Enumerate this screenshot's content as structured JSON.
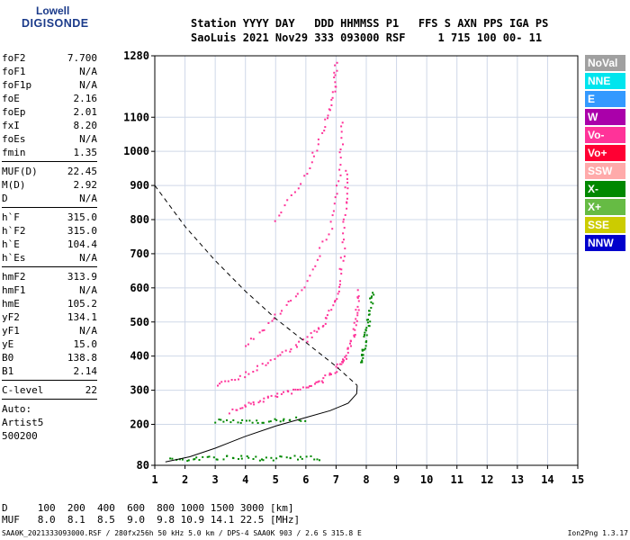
{
  "logo": {
    "line1": "Lowell",
    "line2": "DIGISONDE"
  },
  "header": {
    "line1": "Station YYYY DAY   DDD HHMMSS P1   FFS S AXN PPS IGA PS",
    "line2": "SaoLuis 2021 Nov29 333 093000 RSF     1 715 100 00- 11"
  },
  "params": {
    "group1": [
      {
        "k": "foF2",
        "v": "7.700"
      },
      {
        "k": "foF1",
        "v": "N/A"
      },
      {
        "k": "foF1p",
        "v": "N/A"
      },
      {
        "k": "foE",
        "v": "2.16"
      },
      {
        "k": "foEp",
        "v": "2.01"
      },
      {
        "k": "fxI",
        "v": "8.20"
      },
      {
        "k": "foEs",
        "v": "N/A"
      },
      {
        "k": "fmin",
        "v": "1.35"
      }
    ],
    "group2": [
      {
        "k": "MUF(D)",
        "v": "22.45"
      },
      {
        "k": "M(D)",
        "v": "2.92"
      },
      {
        "k": "D",
        "v": "N/A"
      }
    ],
    "group3": [
      {
        "k": "h`F",
        "v": "315.0"
      },
      {
        "k": "h`F2",
        "v": "315.0"
      },
      {
        "k": "h`E",
        "v": "104.4"
      },
      {
        "k": "h`Es",
        "v": "N/A"
      }
    ],
    "group4": [
      {
        "k": "hmF2",
        "v": "313.9"
      },
      {
        "k": "hmF1",
        "v": "N/A"
      },
      {
        "k": "hmE",
        "v": "105.2"
      },
      {
        "k": "yF2",
        "v": "134.1"
      },
      {
        "k": "yF1",
        "v": "N/A"
      },
      {
        "k": "yE",
        "v": "15.0"
      },
      {
        "k": "B0",
        "v": "138.8"
      },
      {
        "k": "B1",
        "v": "2.14"
      }
    ],
    "group5": [
      {
        "k": "C-level",
        "v": "22"
      }
    ],
    "notes": [
      "Auto:",
      "Artist5",
      "500200"
    ]
  },
  "legend": [
    {
      "label": "NoVal",
      "color": "#a0a0a0"
    },
    {
      "label": "NNE",
      "color": "#00e5ee"
    },
    {
      "label": "E",
      "color": "#3399ff"
    },
    {
      "label": "W",
      "color": "#aa00aa"
    },
    {
      "label": "Vo-",
      "color": "#ff3399"
    },
    {
      "label": "Vo+",
      "color": "#ff0033"
    },
    {
      "label": "SSW",
      "color": "#ffaaaa"
    },
    {
      "label": "X-",
      "color": "#008800"
    },
    {
      "label": "X+",
      "color": "#66bb44"
    },
    {
      "label": "SSE",
      "color": "#cccc00"
    },
    {
      "label": "NNW",
      "color": "#0000cc"
    }
  ],
  "bottom": {
    "line1": "D     100  200  400  600  800 1000 1500 3000 [km]",
    "line2": "MUF   8.0  8.1  8.5  9.0  9.8 10.9 14.1 22.5 [MHz]"
  },
  "footer": {
    "left": "SAA0K_2021333093000.RSF / 280fx256h 50 kHz 5.0 km / DPS-4 SAA0K 903 / 2.6 S 315.8 E",
    "right": "Ion2Png 1.3.17"
  },
  "chart_data": {
    "type": "scatter",
    "xlabel": "",
    "ylabel": "",
    "xlim": [
      1,
      15
    ],
    "ylim": [
      80,
      1280
    ],
    "x_ticks": [
      1,
      2,
      3,
      4,
      5,
      6,
      7,
      8,
      9,
      10,
      11,
      12,
      13,
      14,
      15
    ],
    "y_ticks": [
      80,
      200,
      300,
      400,
      500,
      600,
      700,
      800,
      900,
      1000,
      1100,
      1280
    ],
    "grid": true,
    "traces": [
      {
        "name": "F2 O-trace",
        "color": "#ff3399",
        "points": [
          [
            3.5,
            240
          ],
          [
            4.2,
            265
          ],
          [
            5.0,
            288
          ],
          [
            5.8,
            305
          ],
          [
            6.5,
            330
          ],
          [
            7.0,
            365
          ],
          [
            7.3,
            400
          ],
          [
            7.5,
            450
          ],
          [
            7.65,
            520
          ],
          [
            7.7,
            600
          ]
        ]
      },
      {
        "name": "F2 X-trace",
        "color": "#008800",
        "points": [
          [
            7.8,
            380
          ],
          [
            7.9,
            430
          ],
          [
            8.0,
            480
          ],
          [
            8.1,
            530
          ],
          [
            8.2,
            600
          ]
        ]
      },
      {
        "name": "2nd hop",
        "color": "#ff3399",
        "points": [
          [
            3.0,
            320
          ],
          [
            4.0,
            350
          ],
          [
            5.0,
            400
          ],
          [
            6.0,
            450
          ],
          [
            6.6,
            500
          ],
          [
            7.0,
            580
          ],
          [
            7.2,
            700
          ],
          [
            7.3,
            850
          ],
          [
            7.35,
            950
          ]
        ]
      },
      {
        "name": "3rd hop",
        "color": "#ff3399",
        "points": [
          [
            4.0,
            430
          ],
          [
            5.0,
            520
          ],
          [
            6.0,
            620
          ],
          [
            6.8,
            780
          ],
          [
            7.1,
            950
          ],
          [
            7.2,
            1100
          ]
        ]
      },
      {
        "name": "4th hop",
        "color": "#ff3399",
        "points": [
          [
            5.0,
            800
          ],
          [
            6.0,
            940
          ],
          [
            6.6,
            1080
          ],
          [
            6.9,
            1180
          ],
          [
            7.0,
            1270
          ]
        ]
      },
      {
        "name": "E layer",
        "color": "#008800",
        "points": [
          [
            1.5,
            100
          ],
          [
            2.5,
            103
          ],
          [
            3.5,
            104
          ],
          [
            4.5,
            103
          ],
          [
            5.5,
            104
          ],
          [
            6.5,
            102
          ]
        ]
      },
      {
        "name": "E 2nd hop",
        "color": "#008800",
        "points": [
          [
            3.0,
            210
          ],
          [
            4.0,
            212
          ],
          [
            5.0,
            214
          ],
          [
            6.0,
            218
          ]
        ]
      }
    ],
    "profile": [
      [
        1.35,
        90
      ],
      [
        2.16,
        105
      ],
      [
        3.0,
        130
      ],
      [
        4.0,
        165
      ],
      [
        5.0,
        195
      ],
      [
        6.0,
        220
      ],
      [
        6.8,
        240
      ],
      [
        7.4,
        262
      ],
      [
        7.68,
        290
      ],
      [
        7.7,
        313.9
      ]
    ],
    "muf_curve": [
      [
        1.0,
        900
      ],
      [
        2.0,
        780
      ],
      [
        3.0,
        680
      ],
      [
        4.0,
        590
      ],
      [
        5.0,
        510
      ],
      [
        6.0,
        440
      ],
      [
        7.0,
        370
      ],
      [
        7.7,
        313.9
      ]
    ]
  }
}
